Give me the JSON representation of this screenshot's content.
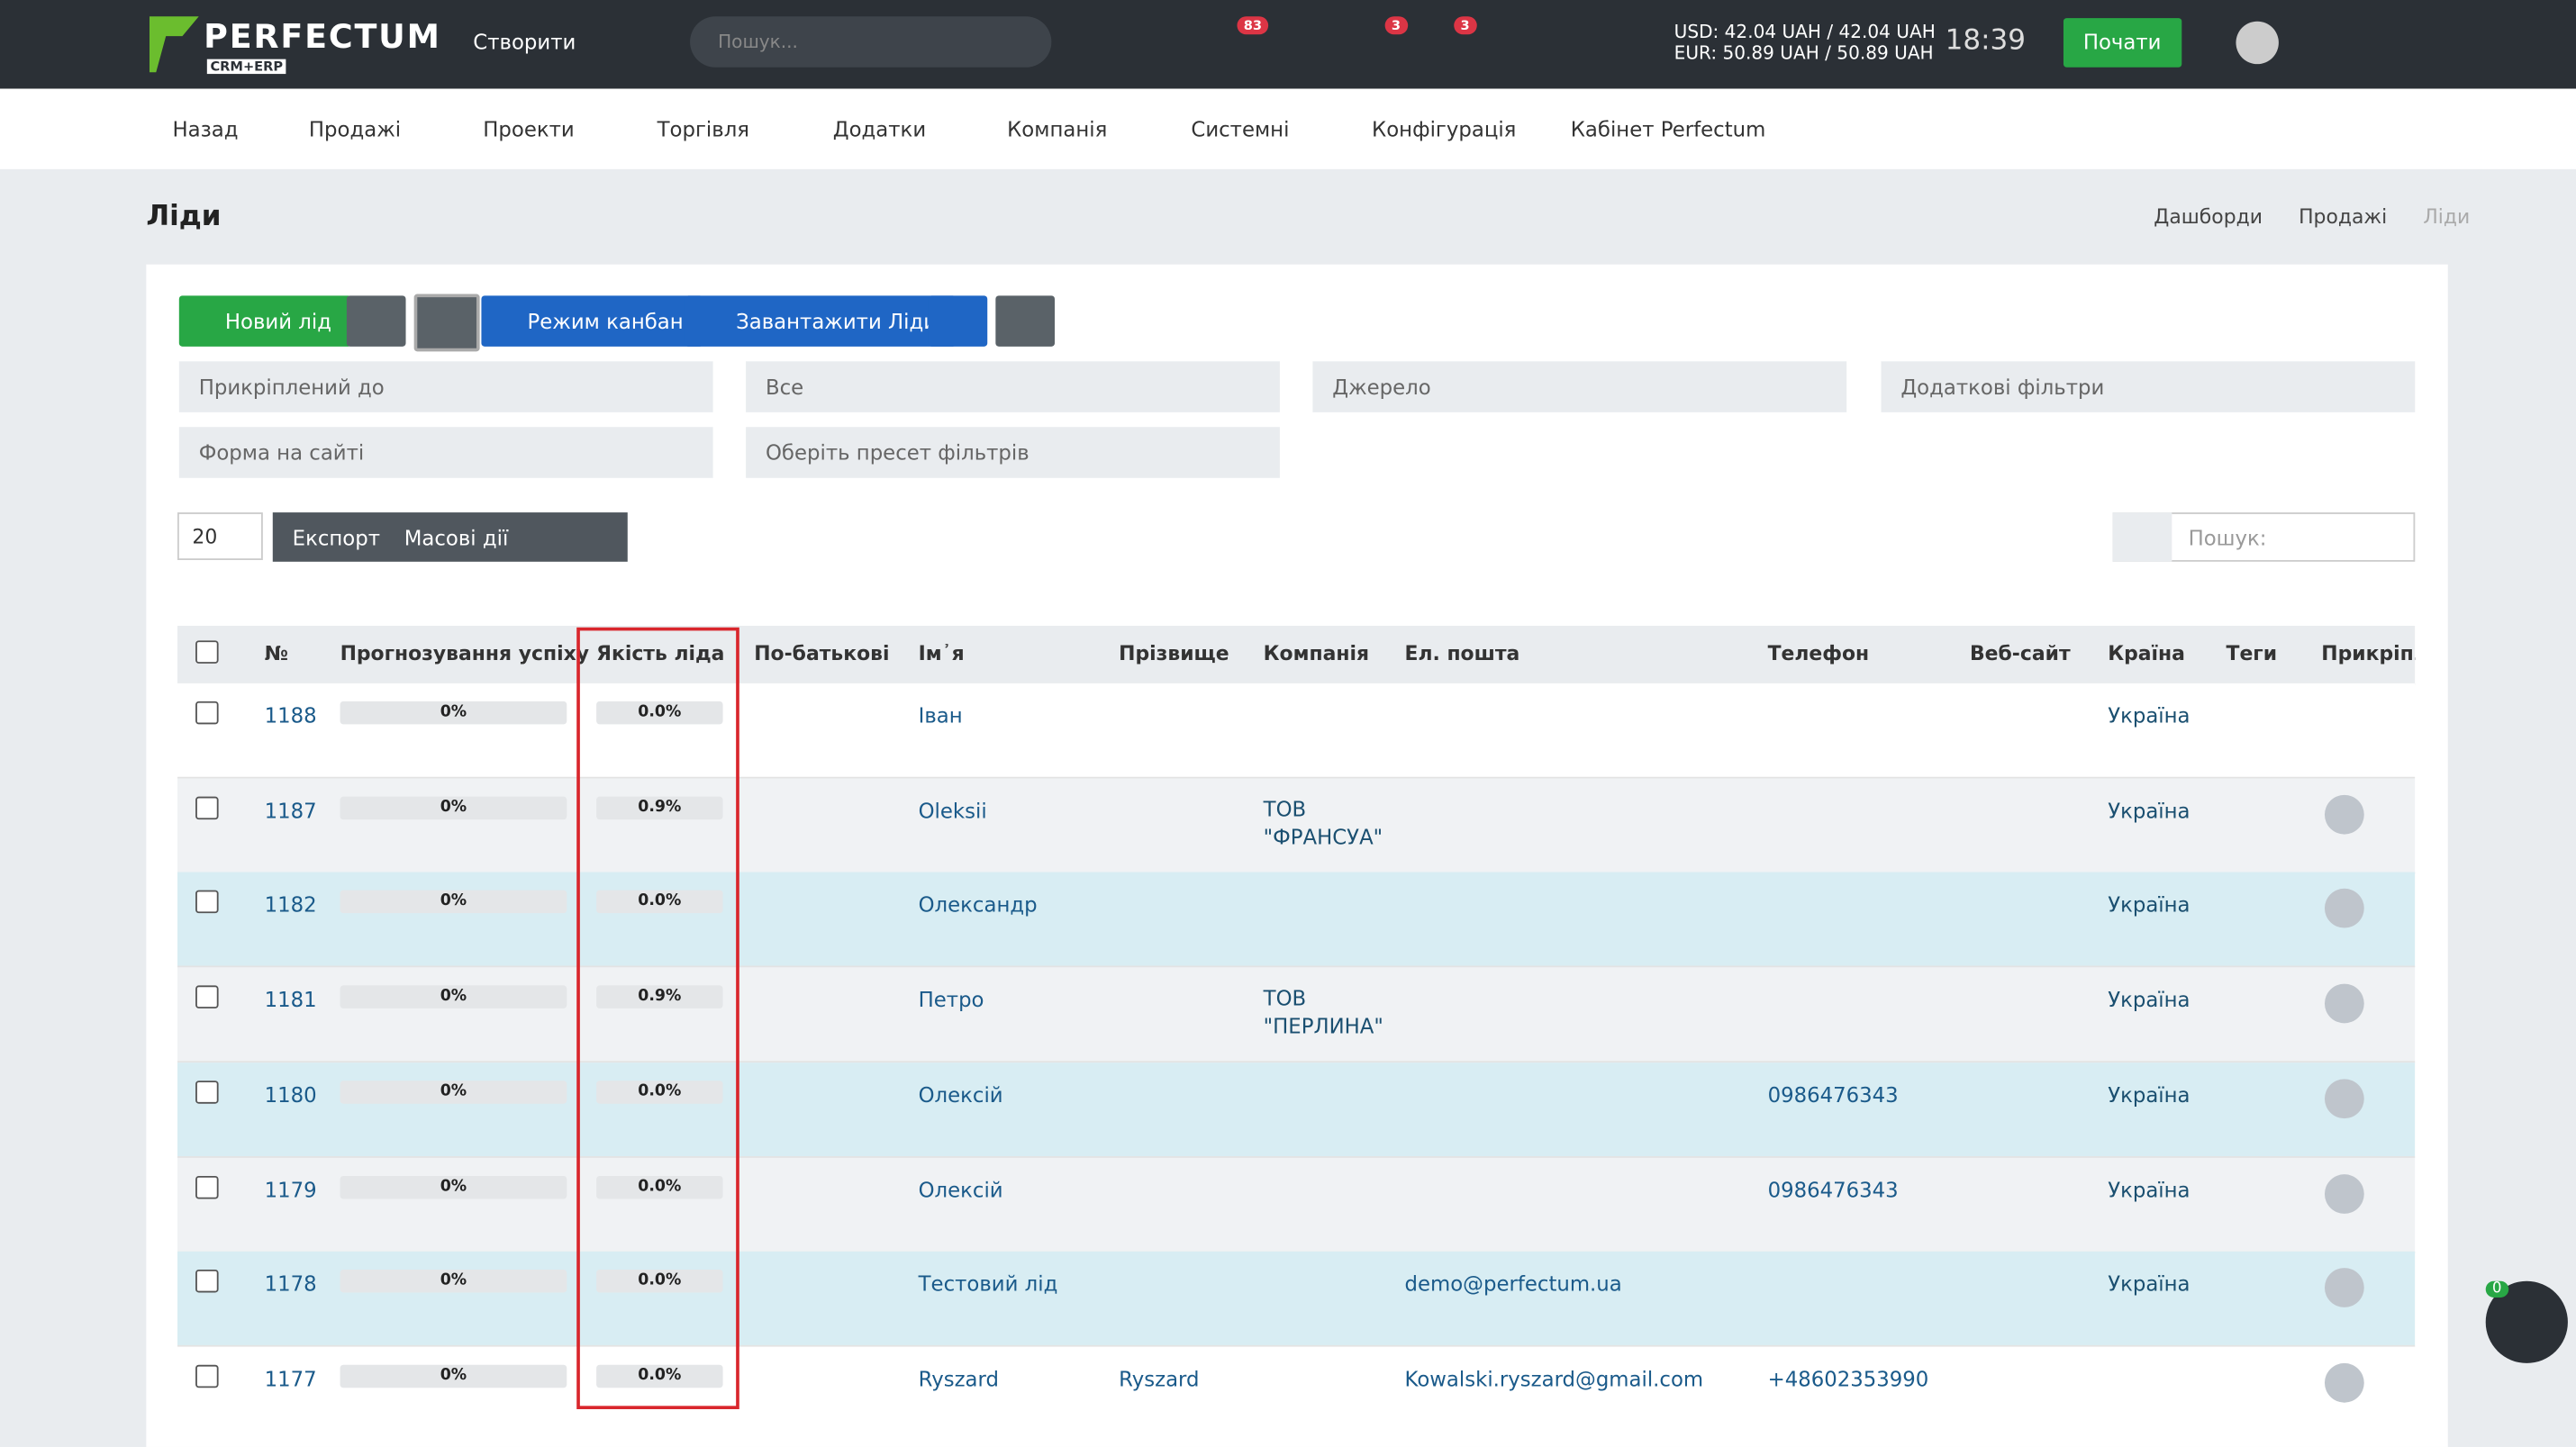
{
  "header": {
    "logo": "PERFECTUM",
    "logo_sub": "CRM+ERP",
    "create": "Створити",
    "search_placeholder": "Пошук...",
    "badges": [
      "83",
      "3",
      "3"
    ],
    "usd": "USD: 42.04 UAH / 42.04 UAH",
    "eur": "EUR: 50.89 UAH / 50.89 UAH",
    "time": "18:39",
    "start": "Почати"
  },
  "nav": [
    "Назад",
    "Продажі",
    "Проекти",
    "Торгівля",
    "Додатки",
    "Компанія",
    "Системні",
    "Конфігурація",
    "Кабінет Perfectum"
  ],
  "page": {
    "title": "Ліди",
    "breadcrumbs": [
      "Дашборди",
      "Продажі",
      "Ліди"
    ]
  },
  "toolbar": {
    "new_lead": "Новий лід",
    "kanban": "Режим канбан",
    "download": "Завантажити Ліди"
  },
  "filters": [
    "Прикріплений до",
    "Все",
    "Джерело",
    "Додаткові фільтри",
    "Форма на сайті",
    "Оберіть пресет фільтрів"
  ],
  "table_controls": {
    "page_size": "20",
    "export": "Експорт",
    "bulk": "Масові дії",
    "search_placeholder": "Пошук:"
  },
  "table": {
    "columns": [
      "№",
      "Прогнозування успіху",
      "Якість ліда",
      "По-батькові",
      "Ім᾿я",
      "Прізвище",
      "Компанія",
      "Ел. пошта",
      "Телефон",
      "Веб-сайт",
      "Країна",
      "Теги",
      "Прикріпле"
    ],
    "rows": [
      {
        "cells": [
          "1188",
          "0%",
          "0.0%",
          null,
          "Іван",
          null,
          null,
          null,
          null,
          null,
          "Україна",
          null
        ],
        "assigned": false
      },
      {
        "cells": [
          "1187",
          "0%",
          "0.9%",
          null,
          "Oleksii",
          null,
          "ТОВ \"ФРАНСУА\"",
          null,
          null,
          null,
          "Україна",
          null
        ],
        "assigned": true
      },
      {
        "cells": [
          "1182",
          "0%",
          "0.0%",
          null,
          "Олександр",
          null,
          null,
          null,
          null,
          null,
          "Україна",
          null
        ],
        "assigned": true
      },
      {
        "cells": [
          "1181",
          "0%",
          "0.9%",
          null,
          "Петро",
          null,
          "ТОВ \"ПЕРЛИНА\"",
          null,
          null,
          null,
          "Україна",
          null
        ],
        "assigned": true
      },
      {
        "cells": [
          "1180",
          "0%",
          "0.0%",
          null,
          "Олексій",
          null,
          null,
          null,
          "0986476343",
          null,
          "Україна",
          null
        ],
        "assigned": true
      },
      {
        "cells": [
          "1179",
          "0%",
          "0.0%",
          null,
          "Олексій",
          null,
          null,
          null,
          "0986476343",
          null,
          "Україна",
          null
        ],
        "assigned": true
      },
      {
        "cells": [
          "1178",
          "0%",
          "0.0%",
          null,
          "Тестовий лід",
          null,
          null,
          "demo@perfectum.ua",
          null,
          null,
          "Україна",
          null
        ],
        "assigned": true
      },
      {
        "cells": [
          "1177",
          "0%",
          "0.0%",
          null,
          "Ryszard",
          "Ryszard",
          null,
          "Kowalski.ryszard@gmail.com",
          "+48602353990",
          null,
          null,
          null
        ],
        "assigned": true
      }
    ]
  },
  "chat": {
    "badge": "0"
  }
}
